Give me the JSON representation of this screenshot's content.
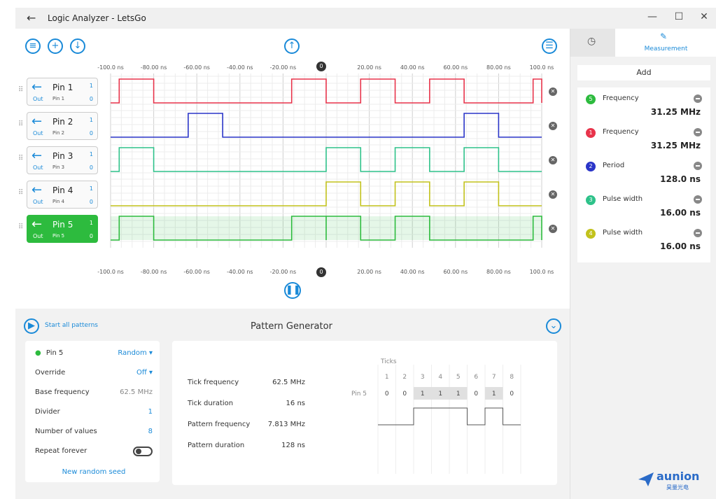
{
  "window": {
    "title": "Logic Analyzer - LetsGo"
  },
  "controls": {
    "minimize": "—",
    "maximize": "☐",
    "close": "✕",
    "back": "←"
  },
  "time_axis": {
    "ticks": [
      "-100.0 ns",
      "-80.00 ns",
      "-60.00 ns",
      "-40.00 ns",
      "-20.00 ns",
      "0",
      "20.00 ns",
      "40.00 ns",
      "60.00 ns",
      "80.00 ns",
      "100.0 ns"
    ],
    "cursor_label": "0"
  },
  "pins": [
    {
      "name": "Pin 1",
      "dir": "Out",
      "sub": "Pin 1",
      "high": "1",
      "low": "0",
      "color": "#e8344b",
      "active": false
    },
    {
      "name": "Pin 2",
      "dir": "Out",
      "sub": "Pin 2",
      "high": "1",
      "low": "0",
      "color": "#2a35c8",
      "active": false
    },
    {
      "name": "Pin 3",
      "dir": "Out",
      "sub": "Pin 3",
      "high": "1",
      "low": "0",
      "color": "#2ec28a",
      "active": false
    },
    {
      "name": "Pin 4",
      "dir": "Out",
      "sub": "Pin 4",
      "high": "1",
      "low": "0",
      "color": "#c2c21c",
      "active": false
    },
    {
      "name": "Pin 5",
      "dir": "Out",
      "sub": "Pin 5",
      "high": "1",
      "low": "0",
      "color": "#2dbb3e",
      "active": true
    }
  ],
  "side": {
    "tab_measurement": "Measurement",
    "add": "Add",
    "measurements": [
      {
        "badge": "5",
        "badge_color": "#2dbb3e",
        "name": "Frequency",
        "value": "31.25 MHz"
      },
      {
        "badge": "1",
        "badge_color": "#e8344b",
        "name": "Frequency",
        "value": "31.25 MHz"
      },
      {
        "badge": "2",
        "badge_color": "#2a35c8",
        "name": "Period",
        "value": "128.0 ns"
      },
      {
        "badge": "3",
        "badge_color": "#2ec28a",
        "name": "Pulse width",
        "value": "16.00 ns"
      },
      {
        "badge": "4",
        "badge_color": "#c2c21c",
        "name": "Pulse width",
        "value": "16.00 ns"
      }
    ]
  },
  "pattern": {
    "title": "Pattern Generator",
    "start_all": "Start all patterns",
    "pin": "Pin 5",
    "mode": "Random",
    "override_label": "Override",
    "override_value": "Off",
    "base_freq_label": "Base frequency",
    "base_freq_value": "62.5 MHz",
    "divider_label": "Divider",
    "divider_value": "1",
    "num_values_label": "Number of values",
    "num_values_value": "8",
    "repeat_label": "Repeat forever",
    "new_seed": "New random seed",
    "info": [
      {
        "label": "Tick frequency",
        "value": "62.5 MHz"
      },
      {
        "label": "Tick duration",
        "value": "16 ns"
      },
      {
        "label": "Pattern frequency",
        "value": "7.813 MHz"
      },
      {
        "label": "Pattern duration",
        "value": "128 ns"
      }
    ],
    "ticks_header": "Ticks",
    "tick_numbers": [
      "1",
      "2",
      "3",
      "4",
      "5",
      "6",
      "7",
      "8"
    ],
    "row_label": "Pin 5",
    "bits": [
      "0",
      "0",
      "1",
      "1",
      "1",
      "0",
      "1",
      "0"
    ]
  },
  "logo": {
    "text": "aunion",
    "sub": "昊量光电"
  }
}
